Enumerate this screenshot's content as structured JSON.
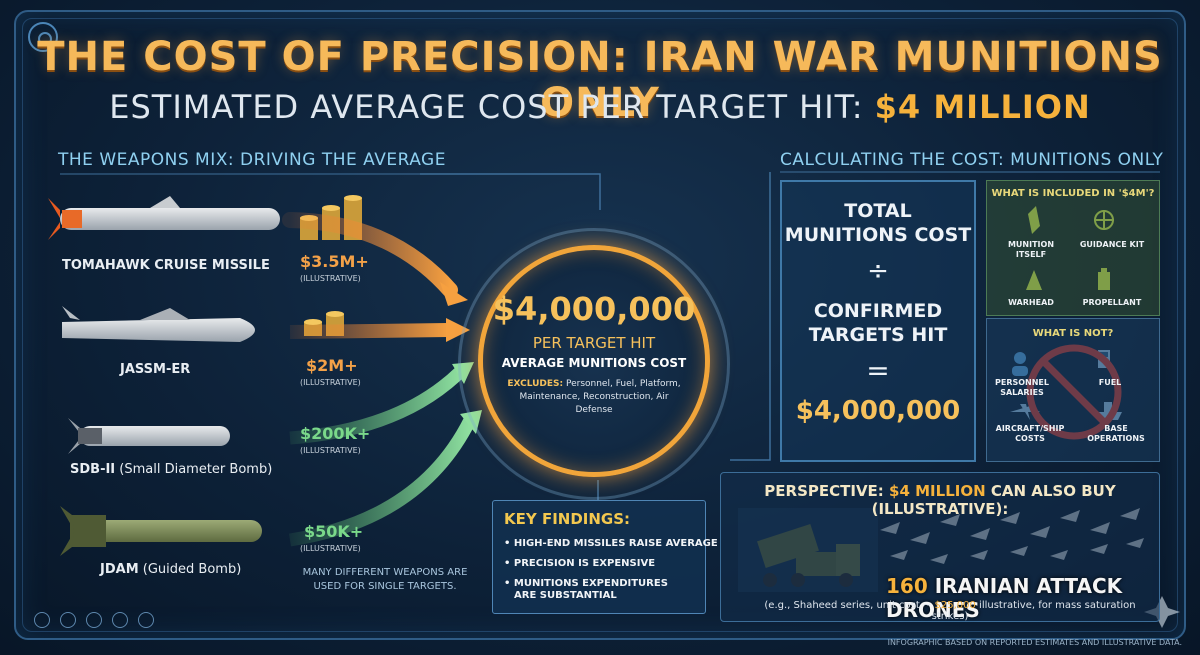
{
  "header": {
    "title": "THE COST OF PRECISION: IRAN WAR MUNITIONS ONLY",
    "subtitle_prefix": "ESTIMATED AVERAGE COST PER TARGET HIT: ",
    "subtitle_value": "$4 MILLION"
  },
  "weapons_section": {
    "heading": "THE WEAPONS MIX: DRIVING THE AVERAGE",
    "weapons": [
      {
        "name": "TOMAHAWK CRUISE MISSILE",
        "name_sub": "",
        "price": "$3.5M+",
        "note": "(ILLUSTRATIVE)",
        "color": "#f0a046"
      },
      {
        "name": "JASSM-ER",
        "name_sub": "",
        "price": "$2M+",
        "note": "(ILLUSTRATIVE)",
        "color": "#f0a046"
      },
      {
        "name": "SDB-II",
        "name_sub": " (Small Diameter Bomb)",
        "price": "$200K+",
        "note": "(ILLUSTRATIVE)",
        "color": "#7ad88a"
      },
      {
        "name": "JDAM",
        "name_sub": " (Guided Bomb)",
        "price": "$50K+",
        "note": "(ILLUSTRATIVE)",
        "color": "#7ad88a"
      }
    ],
    "note_line1": "MANY DIFFERENT WEAPONS ARE",
    "note_line2": "USED FOR SINGLE TARGETS."
  },
  "center": {
    "amount": "$4,000,000",
    "line1": "PER TARGET HIT",
    "line2": "AVERAGE MUNITIONS COST",
    "excludes_label": "EXCLUDES:",
    "excludes_text": " Personnel, Fuel, Platform, Maintenance, Reconstruction, Air Defense"
  },
  "key_findings": {
    "heading": "KEY FINDINGS:",
    "items": [
      "HIGH-END MISSILES RAISE AVERAGE",
      "PRECISION IS EXPENSIVE",
      "MUNITIONS EXPENDITURES",
      "ARE SUBSTANTIAL"
    ]
  },
  "calc_section": {
    "heading": "CALCULATING THE COST: MUNITIONS ONLY",
    "total_line1": "TOTAL",
    "total_line2": "MUNITIONS COST",
    "divide": "÷",
    "confirmed_line1": "CONFIRMED",
    "confirmed_line2": "TARGETS HIT",
    "equals": "=",
    "result": "$4,000,000",
    "included_heading": "WHAT IS INCLUDED IN '$4M'?",
    "included": [
      {
        "label1": "MUNITION",
        "label2": "ITSELF",
        "icon": "missile-icon"
      },
      {
        "label1": "GUIDANCE KIT",
        "label2": "",
        "icon": "crosshair-icon"
      },
      {
        "label1": "WARHEAD",
        "label2": "",
        "icon": "warhead-icon"
      },
      {
        "label1": "PROPELLANT",
        "label2": "",
        "icon": "battery-icon"
      }
    ],
    "not_heading": "WHAT IS NOT?",
    "not_included": [
      {
        "label1": "PERSONNEL",
        "label2": "SALARIES",
        "icon": "person-icon"
      },
      {
        "label1": "FUEL",
        "label2": "",
        "icon": "fuel-pump-icon"
      },
      {
        "label1": "AIRCRAFT/SHIP",
        "label2": "COSTS",
        "icon": "aircraft-icon"
      },
      {
        "label1": "BASE",
        "label2": "OPERATIONS",
        "icon": "ship-icon"
      }
    ]
  },
  "perspective": {
    "heading_prefix": "PERSPECTIVE: ",
    "heading_value": "$4 MILLION",
    "heading_suffix": " CAN ALSO BUY (ILLUSTRATIVE):",
    "drones_num": "160",
    "drones_text": " IRANIAN ATTACK DRONES",
    "note_prefix": "(e.g., Shaheed series, unit cost ~ ",
    "note_value": "$25,000",
    "note_suffix": " illustrative, for mass saturation strikes)"
  },
  "footer": "INFOGRAPHIC BASED ON REPORTED ESTIMATES AND ILLUSTRATIVE DATA.",
  "colors": {
    "accent_orange": "#f6b23c",
    "accent_green": "#7ad88a",
    "accent_blue": "#8fd0f0",
    "background": "#0d2138"
  }
}
